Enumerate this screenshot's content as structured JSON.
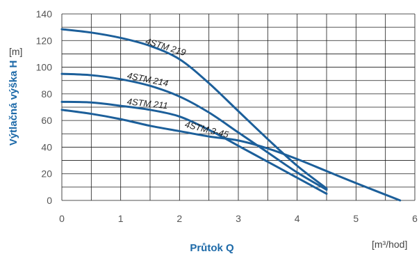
{
  "chart_data": {
    "type": "line",
    "xlabel": "Průtok Q",
    "xunit": "[m³/hod]",
    "ylabel": "Výtlačná výška H",
    "yunit": "[m]",
    "xlim": [
      0,
      6
    ],
    "ylim": [
      0,
      140
    ],
    "xticks": [
      0,
      1,
      2,
      3,
      4,
      5,
      6
    ],
    "yticks": [
      0,
      20,
      40,
      60,
      80,
      100,
      120,
      140
    ],
    "grid": true,
    "line_color": "#1c5f9a",
    "accent_color": "#1c69a8",
    "series": [
      {
        "name": "4STM 219",
        "x": [
          0,
          0.5,
          1,
          1.5,
          2,
          2.5,
          3,
          3.5,
          4,
          4.5
        ],
        "y": [
          128.5,
          126,
          122,
          116,
          106,
          88,
          67,
          46,
          26,
          9
        ]
      },
      {
        "name": "4STM 214",
        "x": [
          0,
          0.5,
          1,
          1.5,
          2,
          2.5,
          3,
          3.5,
          4,
          4.5
        ],
        "y": [
          95,
          94,
          91,
          86,
          78,
          66,
          51,
          36,
          21,
          8
        ]
      },
      {
        "name": "4STM 211",
        "x": [
          0,
          0.5,
          1,
          1.5,
          2,
          2.5,
          3,
          3.5,
          4,
          4.5
        ],
        "y": [
          74,
          73.5,
          71,
          68,
          63,
          53,
          41,
          29,
          17,
          5
        ]
      },
      {
        "name": "4STM 3-45",
        "x": [
          0,
          0.5,
          1,
          1.5,
          2,
          2.5,
          3,
          3.5,
          4,
          4.5,
          5,
          5.75
        ],
        "y": [
          68,
          65,
          61,
          56,
          52,
          48,
          45,
          39,
          31,
          22,
          13,
          0
        ]
      }
    ]
  }
}
